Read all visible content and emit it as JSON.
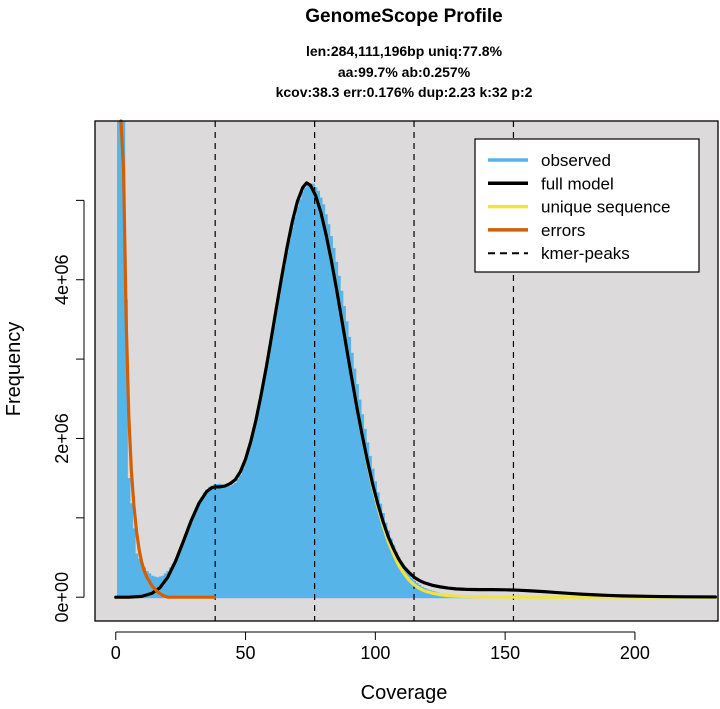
{
  "chart_data": {
    "type": "area",
    "title": "GenomeScope Profile",
    "subtitle_lines": [
      "len:284,111,196bp uniq:77.8%",
      "aa:99.7% ab:0.257%",
      "kcov:38.3 err:0.176%  dup:2.23  k:32 p:2"
    ],
    "xlabel": "Coverage",
    "ylabel": "Frequency",
    "xlim": [
      -8,
      232
    ],
    "ylim": [
      -300000,
      6000000
    ],
    "x_ticks": [
      0,
      50,
      100,
      150,
      200
    ],
    "x_tick_labels": [
      "0",
      "50",
      "100",
      "150",
      "200"
    ],
    "y_ticks": [
      0,
      1000000,
      2000000,
      3000000,
      4000000,
      5000000
    ],
    "y_tick_labels": [
      "0e+00",
      "",
      "2e+06",
      "",
      "4e+06",
      ""
    ],
    "kmer_peaks": [
      38.3,
      76.6,
      114.9,
      153.2
    ],
    "background_color": "#dcdadb",
    "grid": false,
    "legend_position": "top-right",
    "legend": [
      {
        "label": "observed",
        "color": "#56B4E9",
        "style": "solid"
      },
      {
        "label": "full model",
        "color": "#000000",
        "style": "solid"
      },
      {
        "label": "unique sequence",
        "color": "#F0E442",
        "style": "solid"
      },
      {
        "label": "errors",
        "color": "#D55E00",
        "style": "solid"
      },
      {
        "label": "kmer-peaks",
        "color": "#000000",
        "style": "dashed"
      }
    ],
    "series": [
      {
        "name": "observed",
        "color": "#56B4E9",
        "x": [
          0,
          2,
          3,
          5,
          8,
          10,
          12,
          14,
          16,
          18,
          20,
          22,
          24,
          26,
          28,
          30,
          32,
          34,
          36,
          38,
          40,
          42,
          44,
          46,
          48,
          50,
          52,
          54,
          56,
          58,
          60,
          62,
          64,
          66,
          68,
          70,
          72,
          74,
          76,
          78,
          80,
          82,
          84,
          86,
          88,
          90,
          92,
          94,
          96,
          98,
          100,
          102,
          104,
          106,
          108,
          110,
          112,
          114,
          116,
          118,
          120,
          125,
          130,
          135,
          140,
          145,
          150,
          155,
          160,
          165,
          170,
          175,
          180,
          185,
          190,
          200,
          210,
          220,
          231
        ],
        "y": [
          6000000,
          6000000,
          6000000,
          1500000,
          550000,
          420000,
          330000,
          270000,
          250000,
          270000,
          330000,
          420000,
          540000,
          690000,
          860000,
          1040000,
          1200000,
          1320000,
          1390000,
          1420000,
          1430000,
          1410000,
          1400000,
          1440000,
          1540000,
          1710000,
          1930000,
          2200000,
          2510000,
          2860000,
          3230000,
          3610000,
          3990000,
          4350000,
          4660000,
          4920000,
          5110000,
          5210000,
          5210000,
          5120000,
          4950000,
          4700000,
          4400000,
          4050000,
          3670000,
          3280000,
          2880000,
          2490000,
          2120000,
          1780000,
          1460000,
          1180000,
          940000,
          740000,
          570000,
          440000,
          330000,
          240000,
          180000,
          130000,
          100000,
          50000,
          25000,
          12000,
          6000,
          4000,
          3000,
          3000,
          3000,
          3000,
          2000,
          2000,
          2000,
          1000,
          1000,
          1000,
          1000,
          1000,
          1000
        ]
      },
      {
        "name": "full model",
        "color": "#000000",
        "x": [
          0,
          5,
          10,
          14,
          17,
          20,
          23,
          26,
          29,
          32,
          35,
          37,
          38.5,
          40,
          42,
          44,
          46,
          48,
          50,
          52,
          54,
          56,
          58,
          60,
          62,
          64,
          66,
          68,
          70,
          72,
          73.5,
          75,
          77,
          79,
          81,
          83,
          85,
          87,
          89,
          91,
          93,
          95,
          97,
          99,
          101,
          103,
          105,
          107,
          109,
          111,
          113,
          115,
          117,
          119,
          122,
          125,
          128,
          131,
          135,
          140,
          145,
          150,
          155,
          160,
          165,
          170,
          175,
          180,
          185,
          190,
          195,
          200,
          210,
          220,
          231
        ],
        "y": [
          0,
          0,
          10000,
          50000,
          120000,
          250000,
          450000,
          700000,
          960000,
          1180000,
          1330000,
          1380000,
          1390000,
          1390000,
          1400000,
          1430000,
          1480000,
          1580000,
          1740000,
          1960000,
          2230000,
          2550000,
          2900000,
          3280000,
          3670000,
          4050000,
          4410000,
          4730000,
          4990000,
          5160000,
          5220000,
          5190000,
          5060000,
          4850000,
          4570000,
          4250000,
          3890000,
          3510000,
          3120000,
          2740000,
          2370000,
          2030000,
          1710000,
          1420000,
          1170000,
          950000,
          760000,
          610000,
          480000,
          380000,
          310000,
          250000,
          210000,
          180000,
          150000,
          130000,
          115000,
          105000,
          98000,
          95000,
          95000,
          93000,
          88000,
          80000,
          70000,
          58000,
          47000,
          37000,
          29000,
          22000,
          17000,
          13000,
          8000,
          5000,
          3000
        ]
      },
      {
        "name": "unique sequence",
        "color": "#F0E442",
        "x": [
          0,
          5,
          10,
          14,
          17,
          20,
          23,
          26,
          29,
          32,
          35,
          37,
          38.5,
          40,
          42,
          44,
          46,
          48,
          50,
          52,
          54,
          56,
          58,
          60,
          62,
          64,
          66,
          68,
          70,
          72,
          73.5,
          75,
          77,
          79,
          81,
          83,
          85,
          87,
          89,
          91,
          93,
          95,
          97,
          99,
          101,
          103,
          105,
          107,
          109,
          111,
          113,
          115,
          117,
          119,
          122,
          125,
          128,
          131,
          135,
          140,
          145,
          150,
          155,
          160,
          165,
          170,
          175,
          180,
          185,
          190,
          195,
          200,
          210,
          220,
          231
        ],
        "y": [
          0,
          0,
          10000,
          50000,
          120000,
          250000,
          450000,
          700000,
          960000,
          1180000,
          1330000,
          1380000,
          1390000,
          1390000,
          1400000,
          1430000,
          1480000,
          1580000,
          1740000,
          1960000,
          2230000,
          2550000,
          2900000,
          3280000,
          3670000,
          4050000,
          4410000,
          4730000,
          4990000,
          5160000,
          5220000,
          5190000,
          5060000,
          4850000,
          4570000,
          4250000,
          3890000,
          3510000,
          3120000,
          2740000,
          2370000,
          2020000,
          1690000,
          1390000,
          1130000,
          900000,
          700000,
          540000,
          400000,
          300000,
          215000,
          155000,
          110000,
          78000,
          50000,
          32000,
          20000,
          13000,
          8000,
          5000,
          3000,
          2000,
          1000,
          1000,
          1000,
          0,
          0,
          0,
          0,
          0,
          0,
          0,
          0,
          0,
          0
        ]
      },
      {
        "name": "errors",
        "color": "#D55E00",
        "x": [
          2,
          3,
          4,
          5,
          6,
          7,
          8,
          9,
          10,
          11,
          12,
          14,
          16,
          18,
          20,
          25,
          30,
          35,
          38
        ],
        "y": [
          6000000,
          5400000,
          3500000,
          2300000,
          1600000,
          1150000,
          830000,
          600000,
          440000,
          330000,
          250000,
          140000,
          70000,
          25000,
          0,
          0,
          0,
          0,
          0
        ]
      }
    ]
  }
}
